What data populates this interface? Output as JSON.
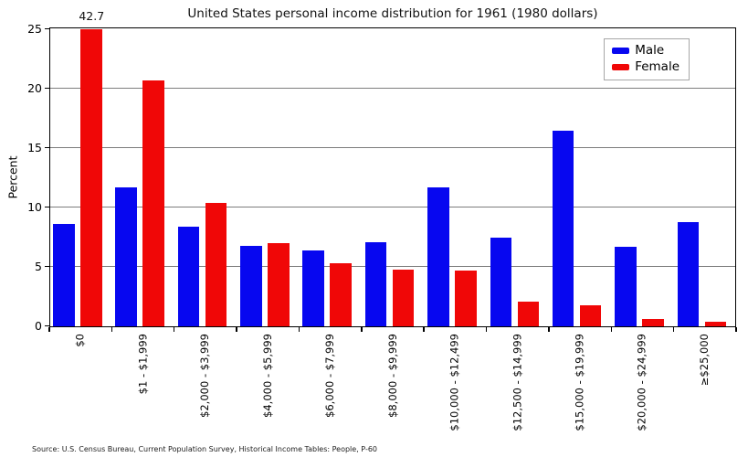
{
  "source_note": "Source: U.S. Census Bureau, Current Population Survey, Historical Income Tables: People, P-60",
  "chart_data": {
    "type": "bar",
    "title": "United States personal income distribution for 1961 (1980 dollars)",
    "xlabel": "",
    "ylabel": "Percent",
    "ylim": [
      0,
      25
    ],
    "yticks": [
      0,
      5,
      10,
      15,
      20,
      25
    ],
    "grid": true,
    "legend_position": "upper right",
    "categories": [
      "$0",
      "$1 - $1,999",
      "$2,000 - $3,999",
      "$4,000 - $5,999",
      "$6,000 - $7,999",
      "$8,000 - $9,999",
      "$10,000 - $12,499",
      "$12,500 - $14,999",
      "$15,000 - $19,999",
      "$20,000 - $24,999",
      "≥$25,000"
    ],
    "series": [
      {
        "name": "Male",
        "color": "#0707f0",
        "values": [
          8.6,
          11.7,
          8.4,
          6.8,
          6.4,
          7.1,
          11.7,
          7.5,
          16.5,
          6.7,
          8.8
        ]
      },
      {
        "name": "Female",
        "color": "#f00707",
        "values": [
          42.7,
          20.7,
          10.4,
          7.0,
          5.3,
          4.8,
          4.7,
          2.1,
          1.8,
          0.6,
          0.4
        ]
      }
    ],
    "annotations": [
      {
        "text": "42.7",
        "series": 1,
        "group": 0,
        "note": "value of clipped bar shown above axis top"
      }
    ]
  },
  "colors": {
    "male": "#0707f0",
    "female": "#f00707",
    "gridline": "#7d7d7d",
    "axis": "#000000"
  }
}
